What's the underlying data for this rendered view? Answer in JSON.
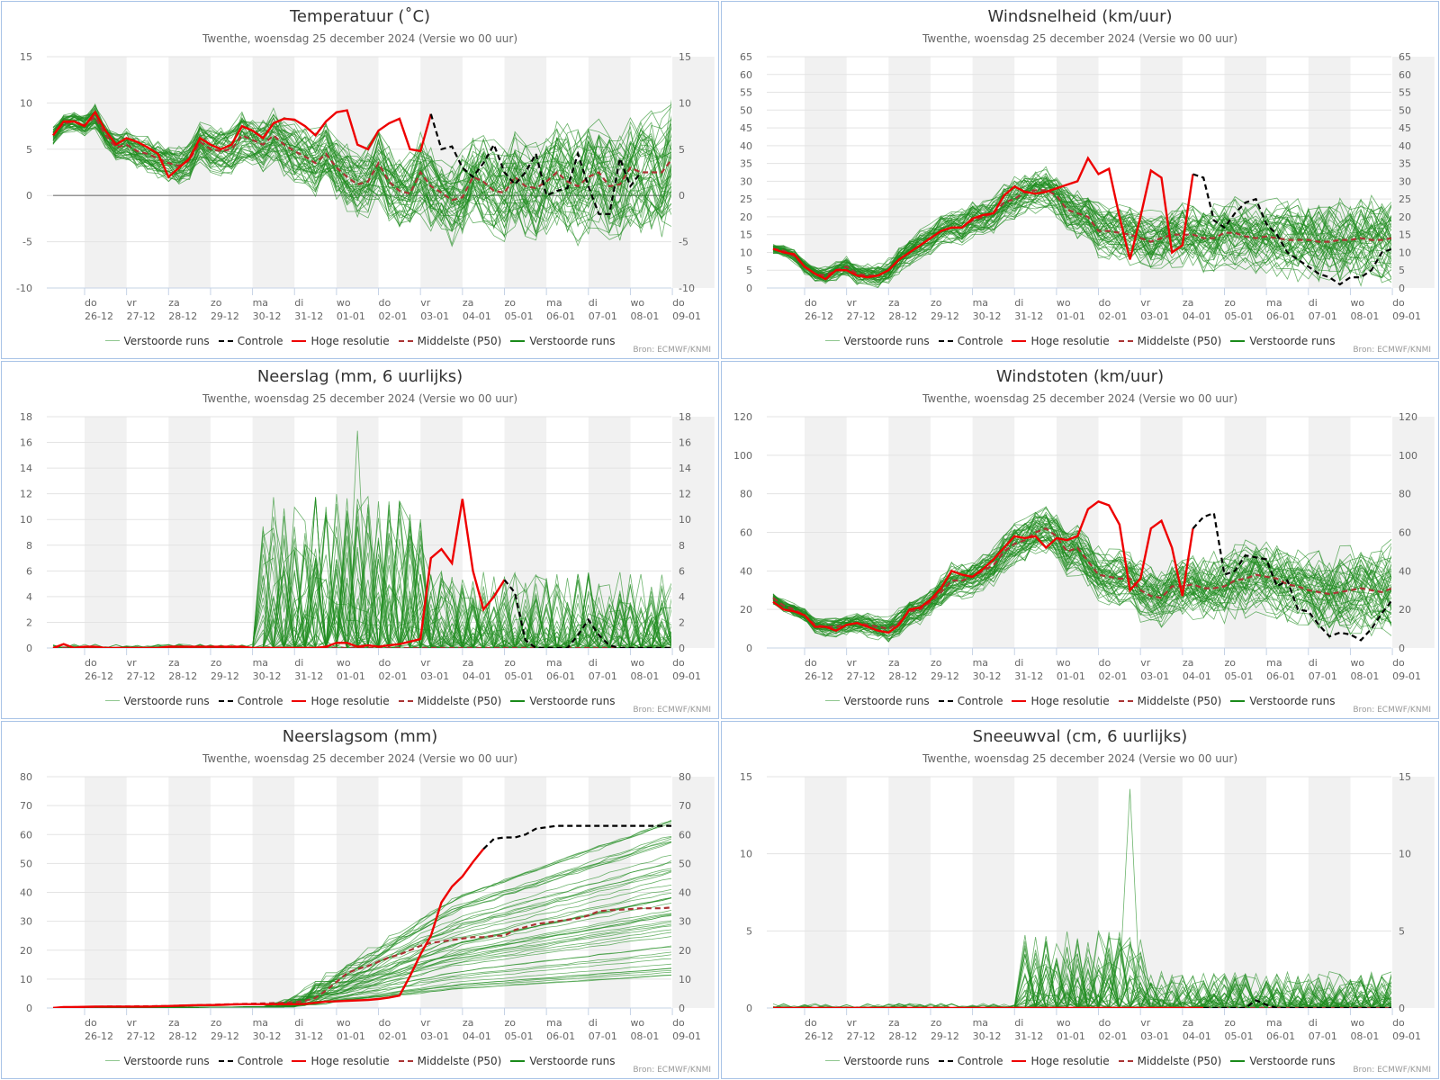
{
  "page": {
    "subtitle": "Twenthe, woensdag 25 december 2024 (Versie wo 00 uur)",
    "source": "Bron: ECMWF/KNMI"
  },
  "legend": [
    {
      "label": "Verstoorde runs",
      "style": "thin-green",
      "color": "#90c890"
    },
    {
      "label": "Controle",
      "style": "dashed",
      "color": "#000000"
    },
    {
      "label": "Hoge resolutie",
      "style": "solid",
      "color": "#ee0000"
    },
    {
      "label": "Middelste (P50)",
      "style": "dashed",
      "color": "#aa3333"
    },
    {
      "label": "Verstoorde runs",
      "style": "solid",
      "color": "#1a8a1a"
    }
  ],
  "x_axis": {
    "days": [
      {
        "dow": "do",
        "date": "26-12"
      },
      {
        "dow": "vr",
        "date": "27-12"
      },
      {
        "dow": "za",
        "date": "28-12"
      },
      {
        "dow": "zo",
        "date": "29-12"
      },
      {
        "dow": "ma",
        "date": "30-12"
      },
      {
        "dow": "di",
        "date": "31-12"
      },
      {
        "dow": "wo",
        "date": "01-01"
      },
      {
        "dow": "do",
        "date": "02-01"
      },
      {
        "dow": "vr",
        "date": "03-01"
      },
      {
        "dow": "za",
        "date": "04-01"
      },
      {
        "dow": "zo",
        "date": "05-01"
      },
      {
        "dow": "ma",
        "date": "06-01"
      },
      {
        "dow": "di",
        "date": "07-01"
      },
      {
        "dow": "wo",
        "date": "08-01"
      },
      {
        "dow": "do",
        "date": "09-01"
      }
    ]
  },
  "colors": {
    "ensemble": "#1e8c1e",
    "control": "#000000",
    "hires": "#ee0000",
    "median": "#aa3333",
    "band": "#f1f1f1",
    "grid": "#e3e3e3"
  },
  "chart_data": [
    {
      "id": "temp",
      "type": "line",
      "title": "Temperatuur (˚C)",
      "ylim": [
        -10,
        15
      ],
      "yticks": [
        -10,
        -5,
        0,
        5,
        10,
        15
      ],
      "zero_line": true,
      "hires": [
        6.5,
        8,
        8,
        7.5,
        9,
        7,
        5.5,
        6.2,
        5.8,
        5.2,
        4.5,
        2,
        3,
        4,
        6.2,
        5.5,
        5,
        5.5,
        7.5,
        7,
        6.2,
        7.8,
        8.3,
        8.2,
        7.5,
        6.5,
        8,
        9,
        9.2,
        5.5,
        5,
        7,
        7.8,
        8.3,
        5,
        4.8,
        8.8
      ],
      "control": [
        8.8,
        5,
        5.3,
        3,
        2,
        3.5,
        5.5,
        2.5,
        1.2,
        2.5,
        4.5,
        0,
        0.5,
        0.8,
        4.5,
        1,
        -2,
        -2,
        4,
        1,
        2.5
      ],
      "median": [
        6.5,
        7.8,
        8,
        7.6,
        8.5,
        6.5,
        5.2,
        5.5,
        4.8,
        4.5,
        4,
        3.5,
        3.2,
        3.8,
        5.8,
        5,
        4.8,
        5,
        6.5,
        6,
        5.5,
        6.5,
        5.5,
        4.8,
        4.2,
        3.5,
        4.5,
        3,
        2,
        1.2,
        1.5,
        3.5,
        1.5,
        0.5,
        0.2,
        2.5,
        1,
        0.3,
        -0.5,
        -0.2,
        2,
        1.5,
        0.5,
        0.3,
        2,
        1,
        0.8,
        1.5,
        2.5,
        1.5,
        1,
        2,
        2.5,
        1,
        1.2,
        3,
        2.5,
        2.5,
        2.5,
        4,
        3.5,
        3.5
      ],
      "ensemble_members": 50,
      "ensemble_range": {
        "start_spread": 1,
        "end_spread": 8
      }
    },
    {
      "id": "wind",
      "type": "line",
      "title": "Windsnelheid (km/uur)",
      "ylim": [
        0,
        65
      ],
      "yticks": [
        0,
        5,
        10,
        15,
        20,
        25,
        30,
        35,
        40,
        45,
        50,
        55,
        60,
        65
      ],
      "hires": [
        11,
        10,
        9.5,
        6,
        4,
        2.5,
        5,
        5,
        3.5,
        3,
        3.5,
        5,
        8,
        10,
        12,
        14,
        16,
        17,
        17,
        19.5,
        20.5,
        21,
        26,
        28.5,
        27,
        26.5,
        27,
        28,
        29,
        30,
        36.5,
        32,
        33.5,
        20,
        8,
        20,
        33,
        31,
        10,
        12,
        32
      ],
      "control": [
        32,
        31,
        19,
        17,
        21,
        24,
        25,
        18,
        15,
        10,
        8,
        6,
        4,
        3,
        1,
        3,
        3,
        5,
        10,
        11,
        12
      ],
      "median": [
        11,
        10.5,
        9,
        6,
        4,
        3.5,
        5,
        6,
        4,
        3.5,
        3.5,
        5,
        8,
        10,
        12,
        14,
        16,
        17,
        17,
        19,
        20,
        21,
        24,
        25,
        27,
        27.5,
        27.5,
        26,
        22,
        21,
        20,
        16,
        16,
        15.5,
        15,
        14,
        13,
        14,
        15,
        15,
        15,
        14,
        14,
        15.5,
        15.5,
        14.5,
        14,
        14.5,
        14,
        13.5,
        13.5,
        13.5,
        13,
        13,
        13.5,
        13.5,
        14,
        13.5,
        13.5,
        14,
        13.5,
        13
      ],
      "ensemble_members": 50
    },
    {
      "id": "precip",
      "type": "line",
      "title": "Neerslag (mm, 6 uurlijks)",
      "ylim": [
        0,
        18
      ],
      "yticks": [
        0,
        2,
        4,
        6,
        8,
        10,
        12,
        14,
        16,
        18
      ],
      "hires": [
        0,
        0.3,
        0,
        0.1,
        0.1,
        0,
        0,
        0,
        0,
        0,
        0,
        0.1,
        0.1,
        0.1,
        0.1,
        0.1,
        0.1,
        0.1,
        0.1,
        0,
        0,
        0,
        0,
        0,
        0,
        0,
        0.1,
        0.4,
        0.4,
        0.1,
        0.2,
        0.1,
        0.2,
        0.3,
        0.5,
        0.7,
        7,
        7.7,
        6.6,
        11.6,
        6,
        3,
        4,
        5.3
      ],
      "control": [
        5.3,
        4.3,
        0.6,
        0,
        0,
        0,
        0,
        1,
        2.2,
        1,
        0.2,
        0,
        0,
        0,
        0,
        0,
        0,
        0,
        0,
        0,
        0,
        0
      ],
      "median": [
        0,
        0,
        0,
        0,
        0,
        0,
        0,
        0,
        0,
        0,
        0,
        0,
        0,
        0,
        0,
        0,
        0,
        0,
        0,
        0,
        0,
        0,
        0,
        0,
        0,
        0,
        0,
        0,
        0,
        0,
        0,
        0,
        0,
        0,
        0,
        0,
        0,
        0,
        0,
        0,
        0,
        0,
        0,
        0,
        0,
        0,
        0,
        0,
        0,
        0,
        0,
        0,
        0,
        0,
        0,
        0,
        0,
        0,
        0,
        0,
        0,
        0
      ],
      "ensemble_members": 50,
      "ensemble_peak": 16.9
    },
    {
      "id": "gust",
      "type": "line",
      "title": "Windstoten (km/uur)",
      "ylim": [
        0,
        120
      ],
      "yticks": [
        0,
        20,
        40,
        60,
        80,
        100,
        120
      ],
      "hires": [
        24,
        20,
        19,
        17,
        11,
        11,
        9,
        12,
        13,
        11,
        9,
        8,
        12,
        20,
        21,
        25,
        31,
        40,
        38,
        37,
        41,
        46,
        52,
        58,
        57,
        58,
        52,
        57,
        56,
        58,
        72,
        76,
        74,
        64,
        30,
        36,
        62,
        66,
        52,
        27,
        62
      ],
      "control": [
        62,
        68,
        70,
        38,
        40,
        48,
        47,
        46,
        32,
        35,
        20,
        19,
        12,
        6,
        8,
        7,
        4,
        10,
        18,
        25,
        20
      ],
      "median": [
        26,
        22,
        20,
        17,
        12,
        11,
        11,
        12,
        13,
        12,
        11,
        10,
        13,
        19,
        20,
        24,
        29,
        35,
        35,
        37,
        40,
        43,
        50,
        54,
        56,
        60,
        62,
        58,
        50,
        52,
        45,
        38,
        37,
        36,
        36,
        30,
        27,
        26,
        32,
        32,
        33,
        31,
        31,
        32,
        35,
        36,
        38,
        37,
        36,
        33,
        32,
        30,
        29,
        28,
        29,
        30,
        31,
        30,
        29,
        31,
        30,
        29
      ],
      "ensemble_members": 50
    },
    {
      "id": "precipsum",
      "type": "line",
      "title": "Neerslagsom (mm)",
      "ylim": [
        0,
        80
      ],
      "yticks": [
        0,
        10,
        20,
        30,
        40,
        50,
        60,
        70,
        80
      ],
      "hires": [
        0,
        0.3,
        0.3,
        0.4,
        0.5,
        0.5,
        0.5,
        0.5,
        0.5,
        0.5,
        0.6,
        0.7,
        0.8,
        0.9,
        1,
        1,
        1.1,
        1.2,
        1.3,
        1.3,
        1.3,
        1.3,
        1.3,
        1.3,
        1.4,
        1.8,
        2.2,
        2.3,
        2.5,
        2.6,
        2.8,
        3.1,
        3.6,
        4.3,
        11,
        18.5,
        25,
        36.5,
        42,
        45.5,
        50.5,
        55
      ],
      "control": [
        55,
        58.5,
        59,
        59,
        60,
        62,
        62.5,
        63,
        63,
        63,
        63,
        63,
        63,
        63,
        63,
        63,
        63,
        63,
        63,
        63,
        63
      ],
      "median": [
        0,
        0.2,
        0.3,
        0.3,
        0.4,
        0.5,
        0.5,
        0.5,
        0.6,
        0.6,
        0.7,
        0.7,
        0.8,
        0.9,
        1,
        1.1,
        1.2,
        1.3,
        1.4,
        1.5,
        1.6,
        1.7,
        1.8,
        2,
        2.5,
        3.5,
        6,
        9,
        12,
        13.5,
        14.5,
        16,
        17.5,
        18.5,
        20,
        21.5,
        22.5,
        23,
        23.5,
        24,
        24.5,
        24.5,
        25,
        25,
        27,
        28,
        29,
        29.5,
        30,
        30.5,
        31,
        32,
        33.5,
        33.8,
        34,
        34.2,
        34.5,
        34.5,
        34.5,
        34.8,
        35,
        35
      ],
      "ensemble_members": 50,
      "ensemble_final_range": [
        12,
        73
      ]
    },
    {
      "id": "snow",
      "type": "line",
      "title": "Sneeuwval (cm, 6 uurlijks)",
      "ylim": [
        0,
        15
      ],
      "yticks": [
        0,
        5,
        10,
        15
      ],
      "hires": [
        0,
        0,
        0,
        0,
        0,
        0,
        0,
        0,
        0,
        0,
        0,
        0,
        0,
        0,
        0,
        0,
        0,
        0,
        0,
        0,
        0,
        0,
        0,
        0,
        0,
        0,
        0,
        0,
        0,
        0,
        0,
        0,
        0,
        0,
        0,
        0,
        0,
        0,
        0,
        0,
        0,
        0
      ],
      "control": [
        0,
        0,
        0,
        0,
        0,
        0.5,
        0.2,
        0,
        0,
        0,
        0,
        0,
        0,
        0,
        0,
        0,
        0,
        0,
        0,
        0,
        0
      ],
      "median": [
        0,
        0,
        0,
        0,
        0,
        0,
        0,
        0,
        0,
        0,
        0,
        0,
        0,
        0,
        0,
        0,
        0,
        0,
        0,
        0,
        0,
        0,
        0,
        0,
        0,
        0,
        0,
        0,
        0,
        0,
        0,
        0,
        0,
        0,
        0,
        0,
        0,
        0,
        0,
        0,
        0,
        0,
        0,
        0,
        0,
        0,
        0,
        0,
        0,
        0,
        0,
        0,
        0,
        0,
        0,
        0,
        0,
        0,
        0,
        0,
        0,
        0
      ],
      "ensemble_members": 50,
      "ensemble_peak": 14.2
    }
  ]
}
